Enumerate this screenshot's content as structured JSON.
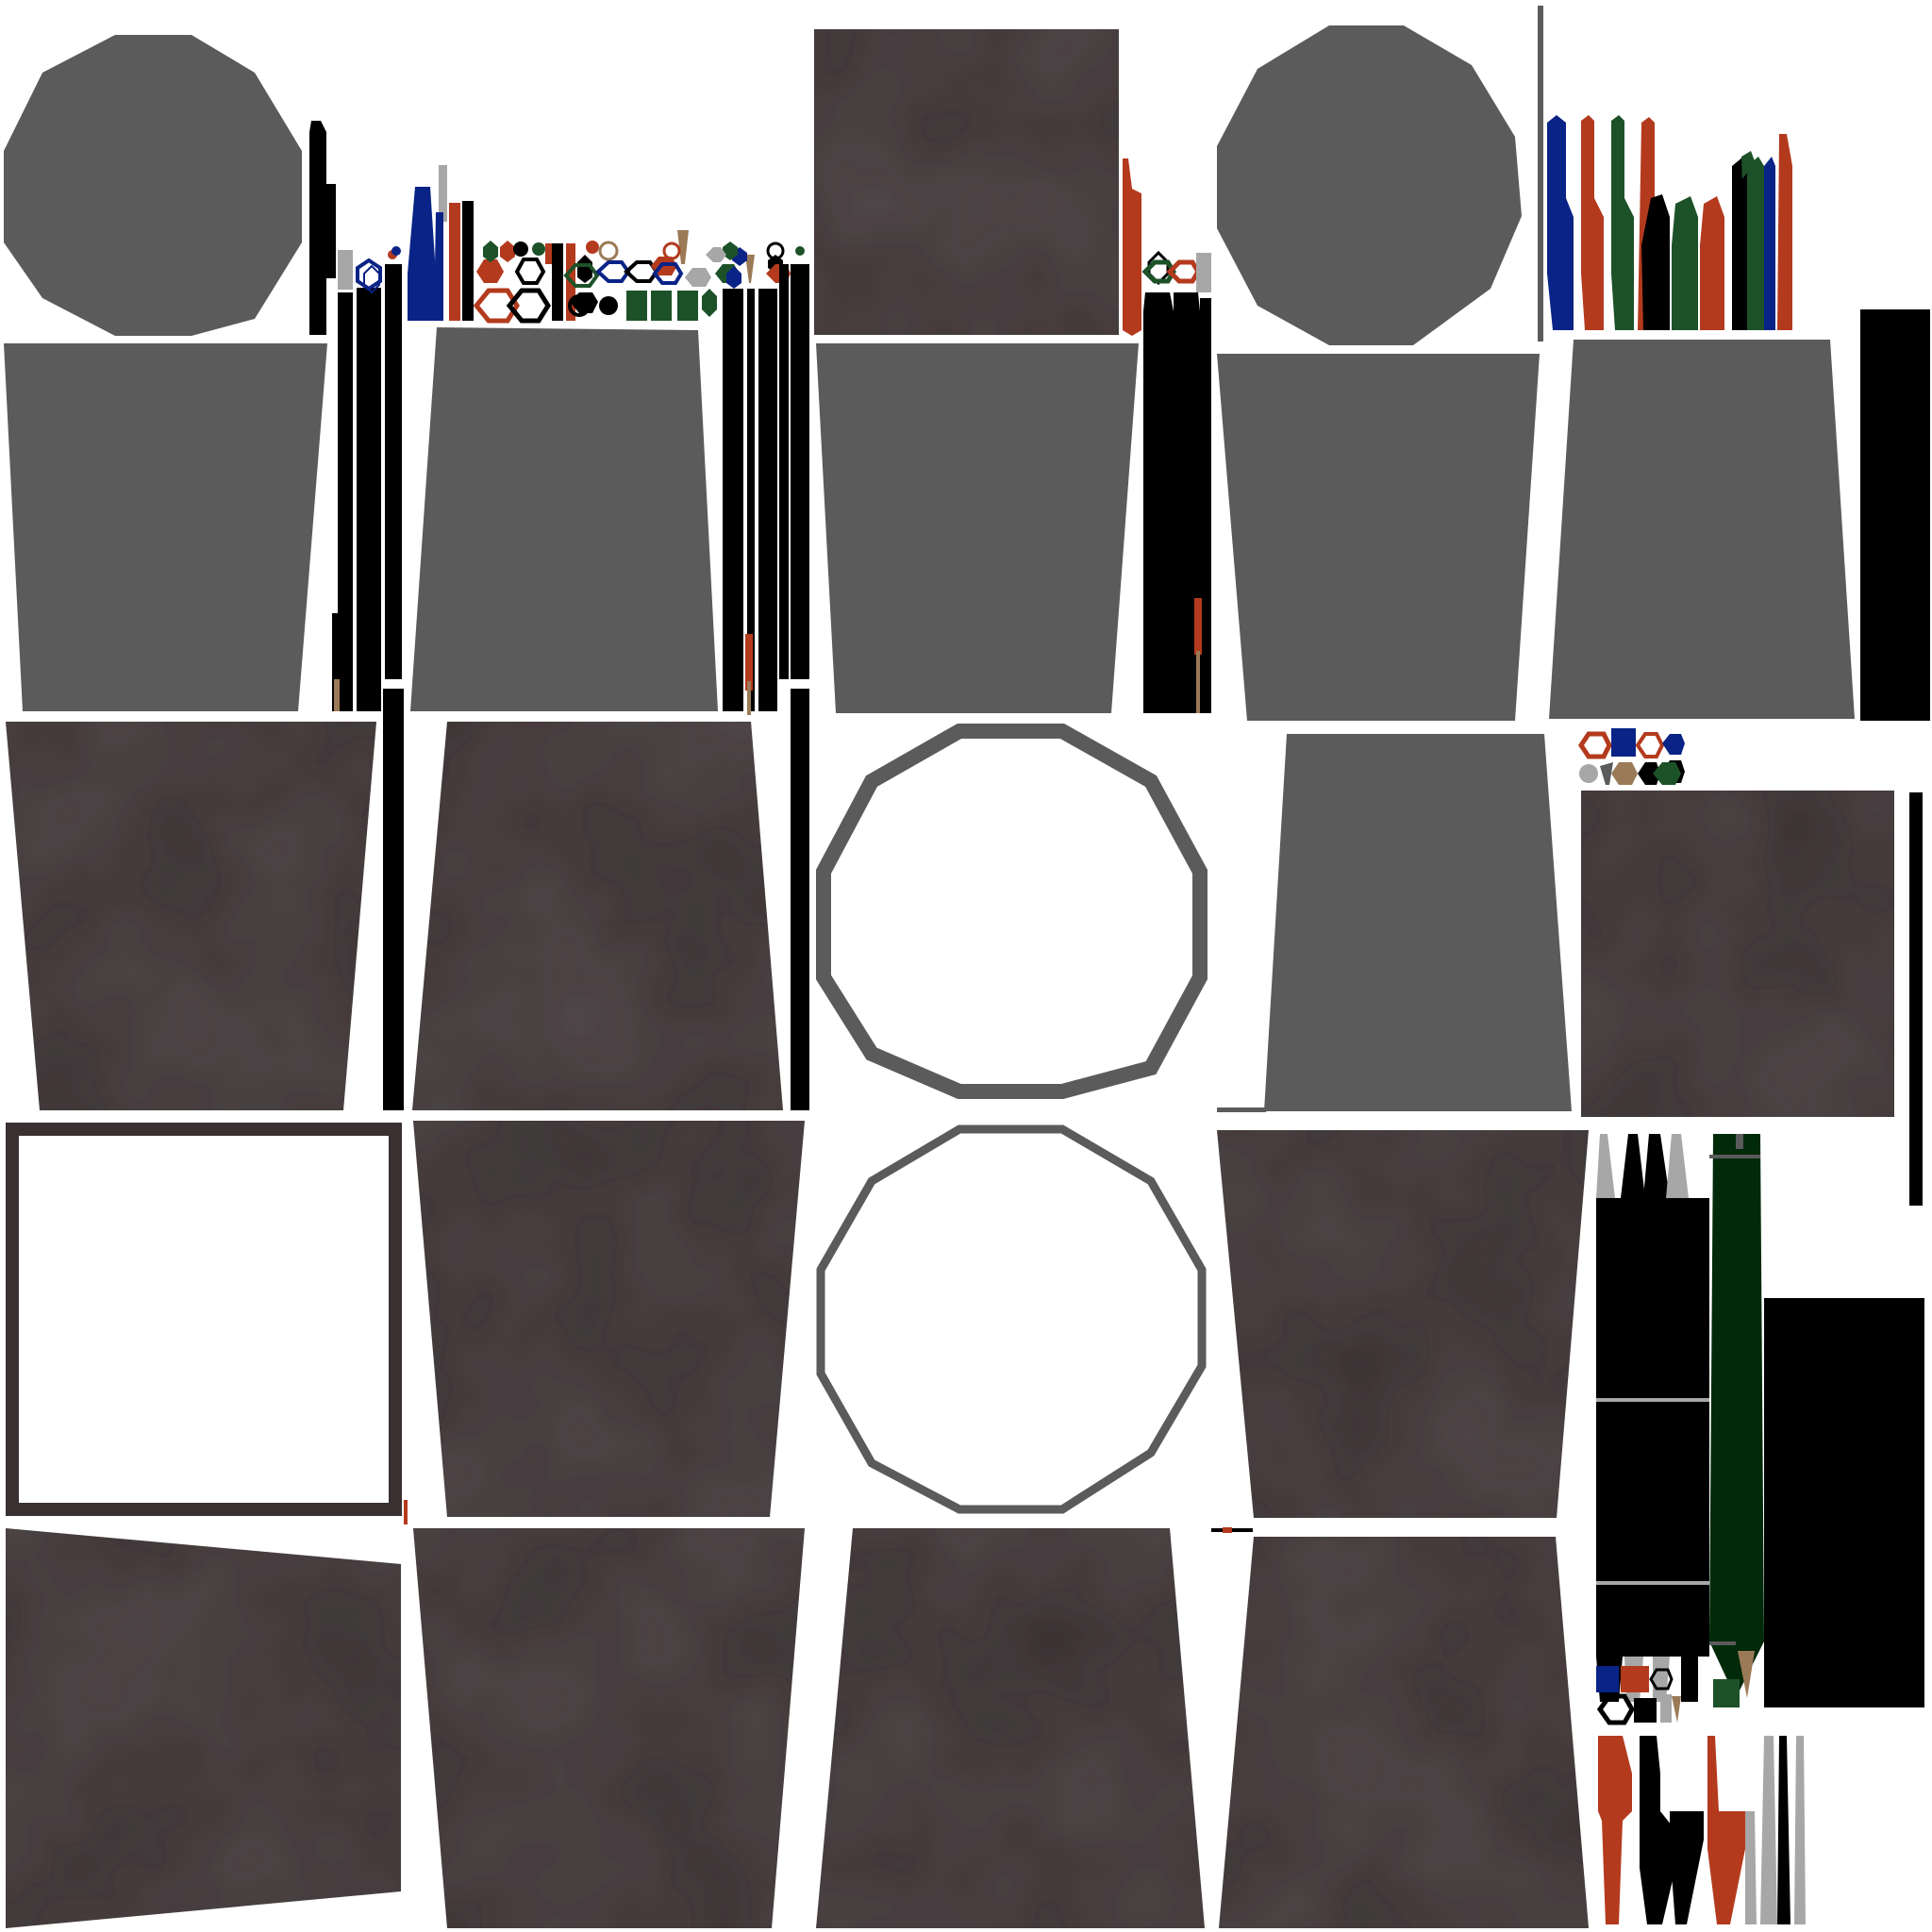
{
  "palette": {
    "background": "#ffffff",
    "cup_grey": "#5b5b5b",
    "cup_dark": "#3a3031",
    "cup_dark_shade": "#2f2728",
    "ring_grey": "#5b5b5b",
    "frame_dark": "#3a3031",
    "black": "#000000",
    "red": "#b43a1e",
    "blue": "#0a2386",
    "green": "#1d5229",
    "dark_green": "#002a0a",
    "light_grey": "#a7a7a7",
    "tan": "#9b7a57"
  },
  "pieces": [
    {
      "name": "top-cap-grey-1",
      "kind": "decagon",
      "color": "cup_grey",
      "fill": true
    },
    {
      "name": "top-cap-grey-2",
      "kind": "decagon",
      "color": "cup_grey",
      "fill": true
    },
    {
      "name": "rim-ring-thick",
      "kind": "decagon-ring",
      "color": "ring_grey"
    },
    {
      "name": "rim-ring-thin",
      "kind": "decagon-ring",
      "color": "ring_grey"
    },
    {
      "name": "base-frame",
      "kind": "frame",
      "color": "frame_dark"
    },
    {
      "name": "cup-side-grey",
      "kind": "trapezoid",
      "color": "cup_grey"
    },
    {
      "name": "cup-side-dark",
      "kind": "trapezoid",
      "color": "cup_dark"
    },
    {
      "name": "pen-sticks",
      "kind": "sticks",
      "color": "black"
    },
    {
      "name": "pencil-set-colored",
      "kind": "pencils",
      "color": "red"
    },
    {
      "name": "hex-pencil-ends",
      "kind": "hexagons",
      "color": "blue"
    }
  ]
}
